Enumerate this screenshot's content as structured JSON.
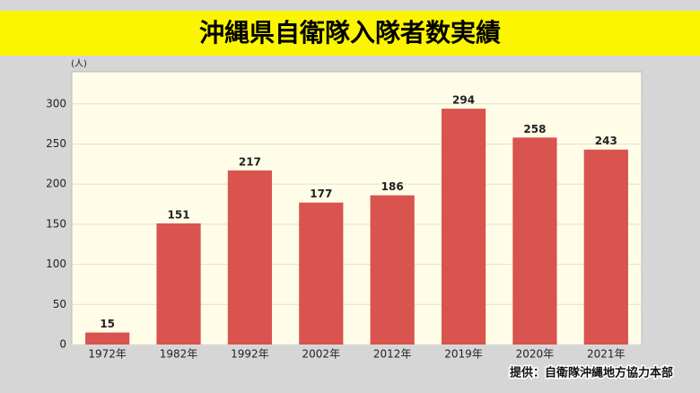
{
  "chart_data": {
    "type": "bar",
    "title": "沖縄県自衛隊入隊者数実績",
    "y_label": "(人)",
    "source": "提供：自衛隊沖縄地方協力本部",
    "categories": [
      "1972年",
      "1982年",
      "1992年",
      "2002年",
      "2012年",
      "2019年",
      "2020年",
      "2021年"
    ],
    "values": [
      15,
      151,
      217,
      177,
      186,
      294,
      258,
      243
    ],
    "color": "#d9534f",
    "ylim": [
      0,
      340
    ],
    "yticks": [
      0,
      50,
      100,
      150,
      200,
      250,
      300
    ],
    "grid": true
  }
}
